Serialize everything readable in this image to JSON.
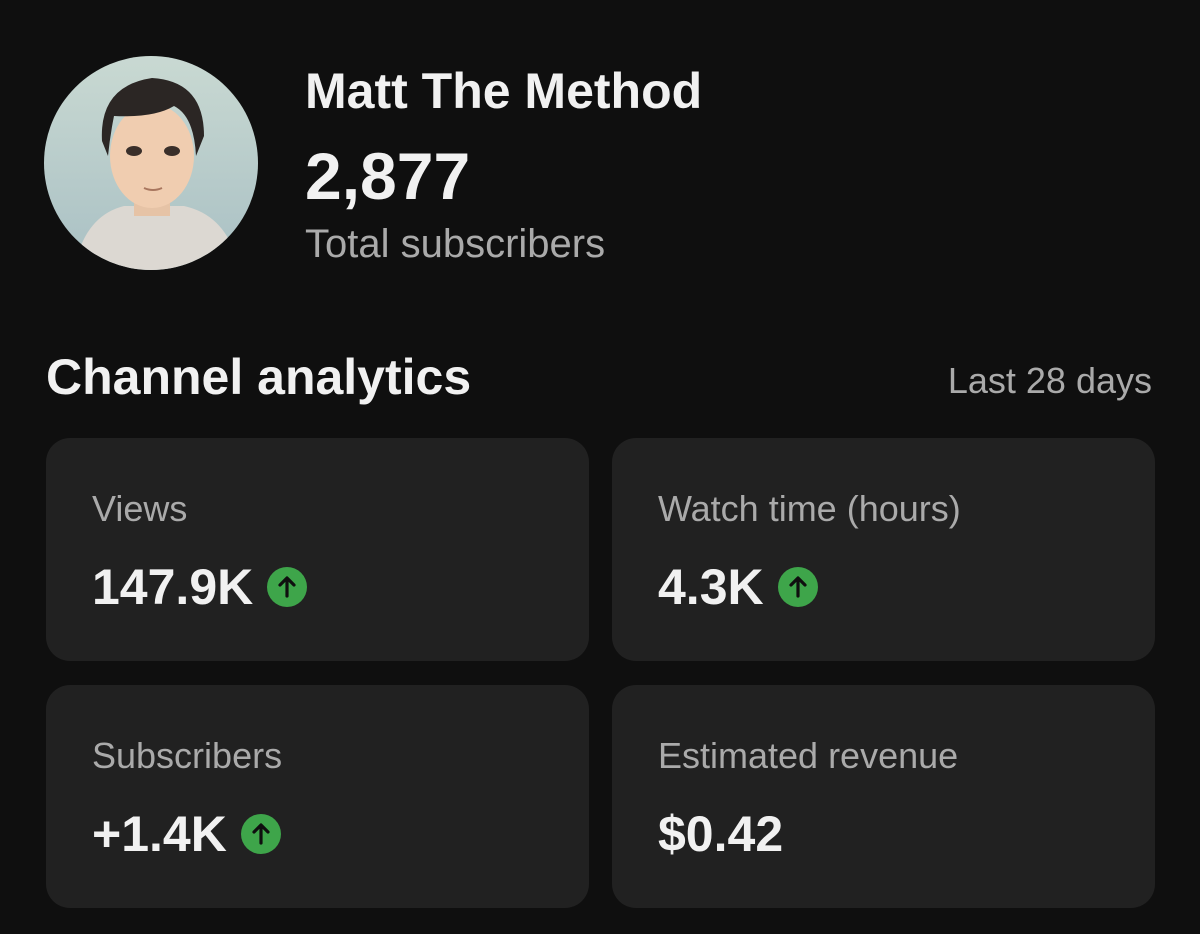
{
  "channel": {
    "name": "Matt The Method",
    "subscriber_count": "2,877",
    "subscriber_caption": "Total subscribers"
  },
  "analytics": {
    "title": "Channel analytics",
    "period": "Last 28 days",
    "cards": [
      {
        "label": "Views",
        "value": "147.9K",
        "trend": "up"
      },
      {
        "label": "Watch time (hours)",
        "value": "4.3K",
        "trend": "up"
      },
      {
        "label": "Subscribers",
        "value": "+1.4K",
        "trend": "up"
      },
      {
        "label": "Estimated revenue",
        "value": "$0.42"
      }
    ]
  }
}
